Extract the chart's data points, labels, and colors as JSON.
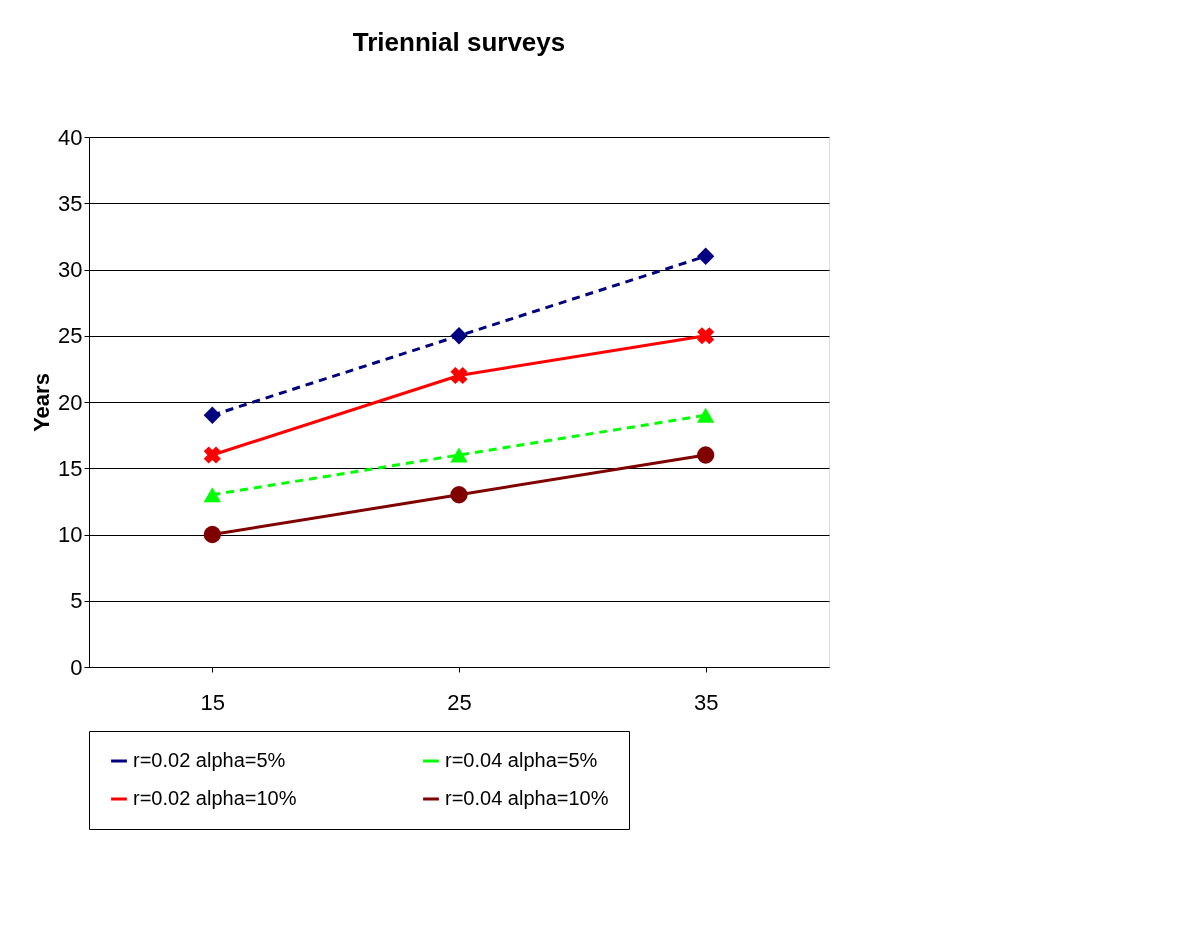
{
  "chart_data": {
    "type": "line",
    "title": "Triennial surveys",
    "ylabel": "Years",
    "categories": [
      "15",
      "25",
      "35"
    ],
    "series": [
      {
        "name": "r=0.02 alpha=5%",
        "color": "#000080",
        "marker": "diamond",
        "line_style": "dashed",
        "values": [
          19,
          25,
          31
        ]
      },
      {
        "name": "r=0.04 alpha=5%",
        "color": "#00ff00",
        "marker": "triangle",
        "line_style": "dashed",
        "values": [
          13,
          16,
          19
        ]
      },
      {
        "name": "r=0.02 alpha=10%",
        "color": "#ff0000",
        "marker": "cross",
        "line_style": "solid",
        "values": [
          16,
          22,
          25
        ]
      },
      {
        "name": "r=0.04 alpha=10%",
        "color": "#800000",
        "marker": "circle",
        "line_style": "solid",
        "values": [
          10,
          13,
          16
        ]
      }
    ],
    "ylim": [
      0,
      40
    ],
    "yticks": [
      0,
      5,
      10,
      15,
      20,
      25,
      30,
      35,
      40
    ],
    "grid": "y",
    "legend": "bottom"
  }
}
